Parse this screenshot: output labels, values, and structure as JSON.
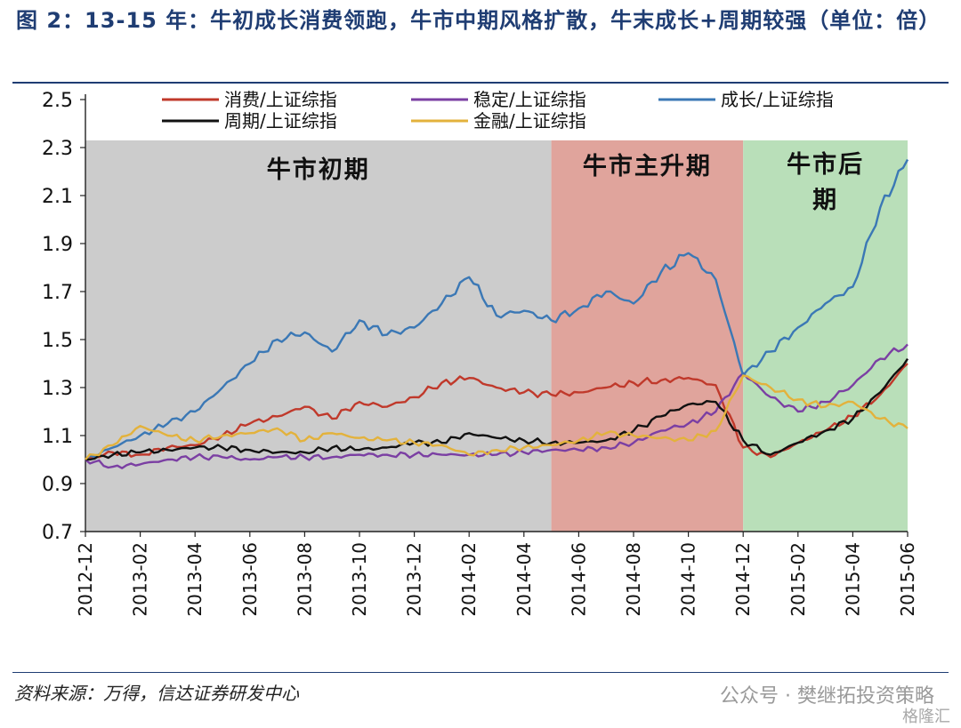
{
  "header": {
    "title": "图 2：13-15 年：牛初成长消费领跑，牛市中期风格扩散，牛末成长+周期较强（单位：倍）"
  },
  "footer": {
    "source": "资料来源：万得，信达证券研发中心",
    "watermark": "公众号 · 樊继拓投资策略",
    "logo_text": "格隆汇"
  },
  "colors": {
    "consumer": "#c0392b",
    "stable": "#7b3fa3",
    "growth": "#3b78b5",
    "cyclical": "#111111",
    "finance": "#e3b23c",
    "phase_early": "#cccccc",
    "phase_main": "#e0a49c",
    "phase_late": "#b9dfb9"
  },
  "chart_data": {
    "type": "line",
    "title": "",
    "xlabel": "",
    "ylabel": "",
    "ylim": [
      0.7,
      2.5
    ],
    "yticks": [
      0.7,
      0.9,
      1.1,
      1.3,
      1.5,
      1.7,
      1.9,
      2.1,
      2.3,
      2.5
    ],
    "ytick_labels": [
      "0.7",
      "0.9",
      "1.1",
      "1.3",
      "1.5",
      "1.7",
      "1.9",
      "2.1",
      "2.3",
      "2.5"
    ],
    "xlim": [
      "2012-12",
      "2015-06"
    ],
    "xtick_labels": [
      "2012-12",
      "2013-02",
      "2013-04",
      "2013-06",
      "2013-08",
      "2013-10",
      "2013-12",
      "2014-02",
      "2014-04",
      "2014-06",
      "2014-08",
      "2014-10",
      "2014-12",
      "2015-02",
      "2015-04",
      "2015-06"
    ],
    "legend_placement": "top",
    "phases": [
      {
        "label": "牛市初期",
        "start": "2012-12",
        "end": "2014-05",
        "color_key": "phase_early"
      },
      {
        "label": "牛市主升期",
        "start": "2014-05",
        "end": "2014-12",
        "color_key": "phase_main"
      },
      {
        "label": "牛市后期",
        "start": "2014-12",
        "end": "2015-06",
        "color_key": "phase_late"
      }
    ],
    "series": [
      {
        "name": "消费/上证综指",
        "color_key": "consumer",
        "x": [
          "2012-12",
          "2013-01",
          "2013-02",
          "2013-03",
          "2013-04",
          "2013-05",
          "2013-06",
          "2013-07",
          "2013-08",
          "2013-09",
          "2013-10",
          "2013-11",
          "2013-12",
          "2014-01",
          "2014-02",
          "2014-03",
          "2014-04",
          "2014-05",
          "2014-06",
          "2014-07",
          "2014-08",
          "2014-09",
          "2014-10",
          "2014-11",
          "2014-12",
          "2015-01",
          "2015-02",
          "2015-03",
          "2015-04",
          "2015-05",
          "2015-06"
        ],
        "y": [
          1.0,
          1.03,
          1.02,
          1.05,
          1.06,
          1.1,
          1.15,
          1.18,
          1.22,
          1.17,
          1.24,
          1.22,
          1.26,
          1.32,
          1.34,
          1.3,
          1.28,
          1.27,
          1.28,
          1.3,
          1.32,
          1.33,
          1.34,
          1.31,
          1.05,
          1.01,
          1.07,
          1.12,
          1.18,
          1.27,
          1.4
        ]
      },
      {
        "name": "稳定/上证综指",
        "color_key": "stable",
        "x": [
          "2012-12",
          "2013-01",
          "2013-02",
          "2013-03",
          "2013-04",
          "2013-05",
          "2013-06",
          "2013-07",
          "2013-08",
          "2013-09",
          "2013-10",
          "2013-11",
          "2013-12",
          "2014-01",
          "2014-02",
          "2014-03",
          "2014-04",
          "2014-05",
          "2014-06",
          "2014-07",
          "2014-08",
          "2014-09",
          "2014-10",
          "2014-11",
          "2014-12",
          "2015-01",
          "2015-02",
          "2015-03",
          "2015-04",
          "2015-05",
          "2015-06"
        ],
        "y": [
          1.0,
          0.97,
          0.98,
          1.0,
          1.01,
          1.01,
          1.0,
          1.01,
          1.01,
          1.01,
          1.02,
          1.02,
          1.02,
          1.02,
          1.02,
          1.02,
          1.03,
          1.04,
          1.04,
          1.05,
          1.07,
          1.12,
          1.15,
          1.2,
          1.36,
          1.26,
          1.2,
          1.24,
          1.31,
          1.42,
          1.48
        ]
      },
      {
        "name": "成长/上证综指",
        "color_key": "growth",
        "x": [
          "2012-12",
          "2013-01",
          "2013-02",
          "2013-03",
          "2013-04",
          "2013-05",
          "2013-06",
          "2013-07",
          "2013-08",
          "2013-09",
          "2013-10",
          "2013-11",
          "2013-12",
          "2014-01",
          "2014-02",
          "2014-03",
          "2014-04",
          "2014-05",
          "2014-06",
          "2014-07",
          "2014-08",
          "2014-09",
          "2014-10",
          "2014-11",
          "2014-12",
          "2015-01",
          "2015-02",
          "2015-03",
          "2015-04",
          "2015-05",
          "2015-06"
        ],
        "y": [
          1.0,
          1.05,
          1.1,
          1.15,
          1.2,
          1.3,
          1.4,
          1.5,
          1.53,
          1.45,
          1.58,
          1.52,
          1.55,
          1.65,
          1.76,
          1.6,
          1.62,
          1.58,
          1.63,
          1.7,
          1.65,
          1.78,
          1.86,
          1.75,
          1.35,
          1.45,
          1.55,
          1.65,
          1.72,
          2.05,
          2.25
        ]
      },
      {
        "name": "周期/上证综指",
        "color_key": "cyclical",
        "x": [
          "2012-12",
          "2013-01",
          "2013-02",
          "2013-03",
          "2013-04",
          "2013-05",
          "2013-06",
          "2013-07",
          "2013-08",
          "2013-09",
          "2013-10",
          "2013-11",
          "2013-12",
          "2014-01",
          "2014-02",
          "2014-03",
          "2014-04",
          "2014-05",
          "2014-06",
          "2014-07",
          "2014-08",
          "2014-09",
          "2014-10",
          "2014-11",
          "2014-12",
          "2015-01",
          "2015-02",
          "2015-03",
          "2015-04",
          "2015-05",
          "2015-06"
        ],
        "y": [
          1.0,
          1.02,
          1.03,
          1.04,
          1.05,
          1.05,
          1.04,
          1.03,
          1.03,
          1.05,
          1.04,
          1.05,
          1.07,
          1.07,
          1.11,
          1.09,
          1.08,
          1.07,
          1.07,
          1.08,
          1.12,
          1.18,
          1.23,
          1.24,
          1.08,
          1.02,
          1.07,
          1.12,
          1.17,
          1.28,
          1.42
        ]
      },
      {
        "name": "金融/上证综指",
        "color_key": "finance",
        "x": [
          "2012-12",
          "2013-01",
          "2013-02",
          "2013-03",
          "2013-04",
          "2013-05",
          "2013-06",
          "2013-07",
          "2013-08",
          "2013-09",
          "2013-10",
          "2013-11",
          "2013-12",
          "2014-01",
          "2014-02",
          "2014-03",
          "2014-04",
          "2014-05",
          "2014-06",
          "2014-07",
          "2014-08",
          "2014-09",
          "2014-10",
          "2014-11",
          "2014-12",
          "2015-01",
          "2015-02",
          "2015-03",
          "2015-04",
          "2015-05",
          "2015-06"
        ],
        "y": [
          1.0,
          1.06,
          1.14,
          1.1,
          1.08,
          1.1,
          1.11,
          1.13,
          1.08,
          1.11,
          1.09,
          1.08,
          1.07,
          1.06,
          1.02,
          1.04,
          1.05,
          1.06,
          1.08,
          1.11,
          1.1,
          1.09,
          1.08,
          1.12,
          1.35,
          1.3,
          1.25,
          1.22,
          1.24,
          1.17,
          1.13
        ]
      }
    ]
  }
}
